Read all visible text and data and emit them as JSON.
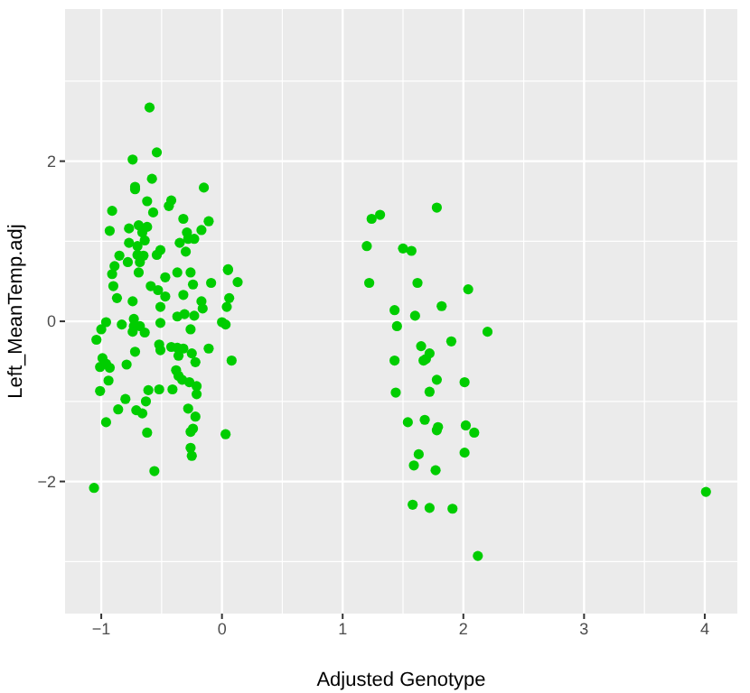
{
  "chart_data": {
    "type": "scatter",
    "xlabel": "Adjusted Genotype",
    "ylabel": "Left_MeanTemp.adj",
    "xlim": [
      -1.3,
      4.27
    ],
    "ylim": [
      -3.65,
      3.9
    ],
    "xticks": [
      -1,
      0,
      1,
      2,
      3,
      4
    ],
    "yticks": [
      -2,
      0,
      2
    ],
    "grid": true,
    "marker": "circle",
    "series": [
      {
        "color": "#00cd00",
        "x": [
          -0.6,
          -0.54,
          -0.74,
          -0.72,
          -0.72,
          -0.58,
          -0.15,
          -0.62,
          -0.42,
          -0.44,
          -0.91,
          -0.57,
          -0.32,
          -0.11,
          -0.93,
          -0.77,
          -0.69,
          -0.62,
          -0.66,
          -0.64,
          -0.29,
          -0.17,
          -0.28,
          -0.23,
          -0.35,
          -0.77,
          -0.7,
          -0.51,
          -0.54,
          -0.3,
          -0.85,
          -0.7,
          -0.65,
          -0.68,
          -0.89,
          -0.78,
          0.05,
          -0.91,
          -0.9,
          -0.87,
          -0.69,
          -0.47,
          -0.59,
          -0.53,
          -0.47,
          -0.37,
          -0.26,
          -0.24,
          -0.32,
          -0.09,
          0.05,
          0.13,
          0.06,
          -0.17,
          -0.16,
          0.04,
          -0.74,
          -0.51,
          -0.37,
          -0.31,
          -0.23,
          -0.96,
          -1.0,
          -1.04,
          -0.83,
          -0.73,
          -0.73,
          -0.68,
          -0.64,
          -0.51,
          -0.74,
          -0.26,
          0.0,
          0.03,
          -0.52,
          -0.42,
          -0.37,
          -0.32,
          -0.51,
          -0.36,
          -0.25,
          -0.11,
          -0.22,
          0.08,
          -0.99,
          -1.01,
          -0.96,
          -0.93,
          -0.79,
          -0.72,
          -0.94,
          -1.01,
          -0.38,
          -0.36,
          -0.33,
          -0.27,
          -0.21,
          -0.21,
          -0.41,
          -0.52,
          -0.61,
          -0.63,
          -0.8,
          -0.86,
          -0.71,
          -0.66,
          -0.28,
          -0.22,
          -0.24,
          -0.26,
          -0.96,
          -0.62,
          0.03,
          -0.26,
          -0.25,
          -0.56,
          -1.06,
          1.78,
          1.31,
          1.24,
          1.2,
          1.5,
          1.57,
          1.22,
          1.62,
          2.04,
          1.43,
          1.82,
          1.6,
          1.45,
          2.2,
          1.9,
          1.65,
          1.72,
          1.43,
          1.67,
          1.69,
          1.78,
          2.01,
          1.44,
          1.72,
          1.54,
          1.68,
          1.79,
          1.78,
          2.02,
          2.09,
          1.63,
          2.01,
          1.59,
          1.77,
          1.58,
          1.72,
          1.91,
          2.12,
          4.01
        ],
        "values": [
          2.67,
          2.11,
          2.02,
          1.68,
          1.65,
          1.78,
          1.67,
          1.5,
          1.51,
          1.44,
          1.38,
          1.36,
          1.28,
          1.25,
          1.13,
          1.16,
          1.2,
          1.18,
          1.11,
          1.01,
          1.11,
          1.14,
          1.03,
          1.03,
          0.98,
          0.98,
          0.94,
          0.89,
          0.83,
          0.87,
          0.82,
          0.83,
          0.82,
          0.74,
          0.69,
          0.74,
          0.65,
          0.59,
          0.44,
          0.29,
          0.61,
          0.55,
          0.44,
          0.39,
          0.31,
          0.61,
          0.61,
          0.46,
          0.33,
          0.48,
          0.64,
          0.49,
          0.29,
          0.25,
          0.16,
          0.18,
          0.25,
          0.18,
          0.06,
          0.09,
          0.07,
          -0.01,
          -0.1,
          -0.23,
          -0.04,
          0.03,
          -0.06,
          -0.06,
          -0.14,
          -0.02,
          -0.13,
          -0.1,
          -0.01,
          -0.04,
          -0.29,
          -0.32,
          -0.33,
          -0.34,
          -0.36,
          -0.43,
          -0.4,
          -0.34,
          -0.51,
          -0.49,
          -0.46,
          -0.57,
          -0.53,
          -0.58,
          -0.54,
          -0.38,
          -0.74,
          -0.87,
          -0.61,
          -0.68,
          -0.73,
          -0.76,
          -0.81,
          -0.91,
          -0.85,
          -0.85,
          -0.86,
          -1.0,
          -0.97,
          -1.1,
          -1.11,
          -1.15,
          -1.09,
          -1.19,
          -1.34,
          -1.38,
          -1.26,
          -1.39,
          -1.41,
          -1.58,
          -1.68,
          -1.87,
          -2.08,
          1.42,
          1.33,
          1.28,
          0.94,
          0.91,
          0.88,
          0.48,
          0.48,
          0.4,
          0.14,
          0.19,
          0.07,
          -0.06,
          -0.13,
          -0.25,
          -0.31,
          -0.4,
          -0.49,
          -0.49,
          -0.47,
          -0.73,
          -0.76,
          -0.89,
          -0.88,
          -1.26,
          -1.23,
          -1.32,
          -1.36,
          -1.3,
          -1.39,
          -1.66,
          -1.64,
          -1.8,
          -1.86,
          -2.29,
          -2.33,
          -2.34,
          -2.93,
          -2.13
        ]
      }
    ]
  }
}
